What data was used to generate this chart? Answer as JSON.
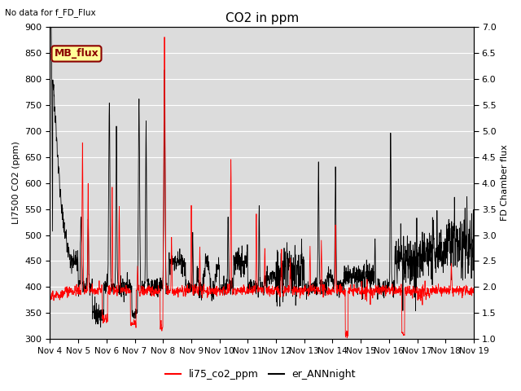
{
  "title": "CO2 in ppm",
  "top_left_text": "No data for f_FD_Flux",
  "ylabel_left": "LI7500 CO2 (ppm)",
  "ylabel_right": "FD Chamber flux",
  "ylim_left": [
    300,
    900
  ],
  "ylim_right": [
    1.0,
    7.0
  ],
  "yticks_left": [
    300,
    350,
    400,
    450,
    500,
    550,
    600,
    650,
    700,
    750,
    800,
    850,
    900
  ],
  "yticks_right": [
    1.0,
    1.5,
    2.0,
    2.5,
    3.0,
    3.5,
    4.0,
    4.5,
    5.0,
    5.5,
    6.0,
    6.5,
    7.0
  ],
  "xtick_labels": [
    "Nov 4",
    "Nov 5",
    "Nov 6",
    "Nov 7",
    "Nov 8",
    "Nov 9",
    "Nov 10",
    "Nov 11",
    "Nov 12",
    "Nov 13",
    "Nov 14",
    "Nov 15",
    "Nov 16",
    "Nov 17",
    "Nov 18",
    "Nov 19"
  ],
  "legend_labels": [
    "li75_co2_ppm",
    "er_ANNnight"
  ],
  "line_red_color": "#ff0000",
  "line_black_color": "#000000",
  "background_color": "#dcdcdc",
  "mb_flux_label": "MB_flux",
  "mb_flux_bg": "#ffff99",
  "mb_flux_fg": "#8b0000"
}
